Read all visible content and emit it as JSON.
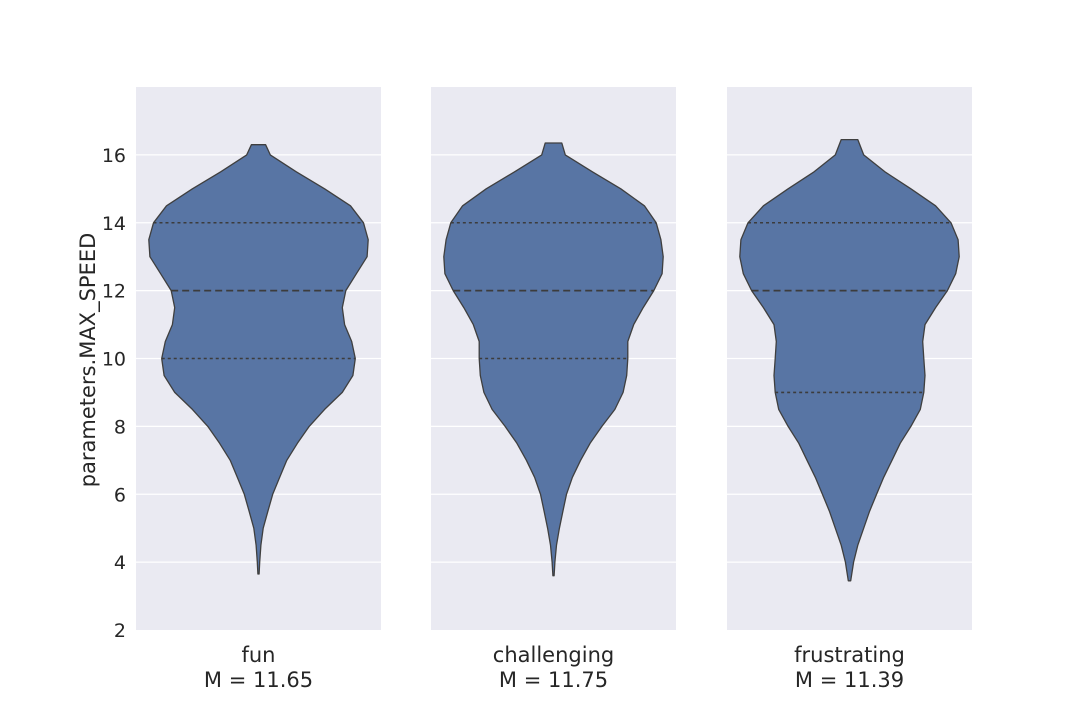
{
  "chart_data": {
    "type": "violin",
    "ylabel": "parameters.MAX_SPEED",
    "ylim": [
      2,
      18
    ],
    "yticks": [
      2,
      4,
      6,
      8,
      10,
      12,
      14,
      16
    ],
    "grid": true,
    "panels": [
      {
        "label": "fun",
        "sublabel": "M = 11.65",
        "quartiles": [
          10,
          12,
          14
        ],
        "range": [
          3.65,
          16.3
        ],
        "density": [
          [
            3.65,
            0.005
          ],
          [
            4,
            0.01
          ],
          [
            4.5,
            0.02
          ],
          [
            5,
            0.04
          ],
          [
            5.5,
            0.08
          ],
          [
            6,
            0.12
          ],
          [
            6.5,
            0.18
          ],
          [
            7,
            0.24
          ],
          [
            7.5,
            0.33
          ],
          [
            8,
            0.43
          ],
          [
            8.5,
            0.56
          ],
          [
            9,
            0.71
          ],
          [
            9.5,
            0.8
          ],
          [
            10,
            0.82
          ],
          [
            10.5,
            0.79
          ],
          [
            11,
            0.73
          ],
          [
            11.5,
            0.71
          ],
          [
            12,
            0.74
          ],
          [
            12.5,
            0.83
          ],
          [
            13,
            0.92
          ],
          [
            13.5,
            0.93
          ],
          [
            14,
            0.89
          ],
          [
            14.5,
            0.78
          ],
          [
            15,
            0.56
          ],
          [
            15.5,
            0.32
          ],
          [
            16,
            0.1
          ],
          [
            16.3,
            0.06
          ]
        ]
      },
      {
        "label": "challenging",
        "sublabel": "M = 11.75",
        "quartiles": [
          10,
          12,
          14
        ],
        "range": [
          3.6,
          16.35
        ],
        "density": [
          [
            3.6,
            0.005
          ],
          [
            4,
            0.012
          ],
          [
            4.5,
            0.025
          ],
          [
            5,
            0.05
          ],
          [
            5.5,
            0.08
          ],
          [
            6,
            0.11
          ],
          [
            6.5,
            0.16
          ],
          [
            7,
            0.23
          ],
          [
            7.5,
            0.31
          ],
          [
            8,
            0.41
          ],
          [
            8.5,
            0.52
          ],
          [
            9,
            0.59
          ],
          [
            9.5,
            0.62
          ],
          [
            10,
            0.63
          ],
          [
            10.5,
            0.63
          ],
          [
            11,
            0.68
          ],
          [
            11.5,
            0.76
          ],
          [
            12,
            0.85
          ],
          [
            12.5,
            0.92
          ],
          [
            13,
            0.93
          ],
          [
            13.5,
            0.91
          ],
          [
            14,
            0.87
          ],
          [
            14.5,
            0.77
          ],
          [
            15,
            0.57
          ],
          [
            15.5,
            0.33
          ],
          [
            16,
            0.1
          ],
          [
            16.35,
            0.07
          ]
        ]
      },
      {
        "label": "frustrating",
        "sublabel": "M = 11.39",
        "quartiles": [
          9,
          12,
          14
        ],
        "range": [
          3.45,
          16.45
        ],
        "density": [
          [
            3.45,
            0.01
          ],
          [
            4,
            0.035
          ],
          [
            4.5,
            0.07
          ],
          [
            5,
            0.12
          ],
          [
            5.5,
            0.17
          ],
          [
            6,
            0.23
          ],
          [
            6.5,
            0.29
          ],
          [
            7,
            0.36
          ],
          [
            7.5,
            0.43
          ],
          [
            8,
            0.52
          ],
          [
            8.5,
            0.6
          ],
          [
            9,
            0.63
          ],
          [
            9.5,
            0.64
          ],
          [
            10,
            0.63
          ],
          [
            10.5,
            0.62
          ],
          [
            11,
            0.64
          ],
          [
            11.5,
            0.73
          ],
          [
            12,
            0.83
          ],
          [
            12.5,
            0.9
          ],
          [
            13,
            0.93
          ],
          [
            13.5,
            0.92
          ],
          [
            14,
            0.86
          ],
          [
            14.5,
            0.73
          ],
          [
            15,
            0.52
          ],
          [
            15.5,
            0.3
          ],
          [
            16,
            0.12
          ],
          [
            16.45,
            0.07
          ]
        ]
      }
    ],
    "colors": {
      "violin_fill": "#5875a4",
      "violin_edge": "#3f3f3f",
      "panel_bg": "#eaeaf2",
      "grid": "#ffffff",
      "quartile_line": "#3c3c3c",
      "text": "#262626"
    }
  }
}
